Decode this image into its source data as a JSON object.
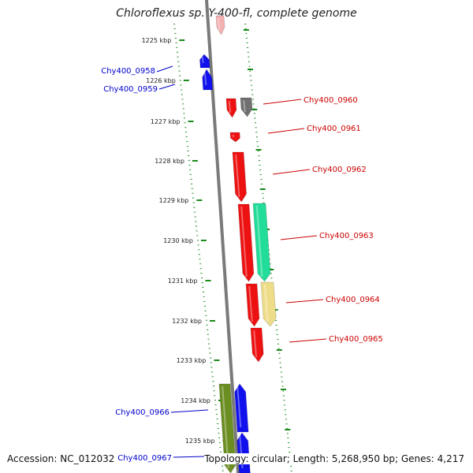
{
  "title": "Chloroflexus sp. Y-400-fl, complete genome",
  "footer": {
    "accession": "Accession: NC_012032",
    "info": "Topology: circular; Length: 5,268,950 bp; Genes: 4,217"
  },
  "colors": {
    "red": "#ee1111",
    "blue": "#1111ee",
    "gray": "#707070",
    "green_teal": "#22dd99",
    "pale_yellow": "#eedd88",
    "olive": "#6b8e23",
    "pink": "#f4b0b0",
    "tick_green": "#1a8a1a",
    "label_red": "#cc0000",
    "label_blue": "#0000cc"
  },
  "ruler_labels": [
    "1225 kbp",
    "1226 kbp",
    "1227 kbp",
    "1228 kbp",
    "1229 kbp",
    "1230 kbp",
    "1231 kbp",
    "1232 kbp",
    "1233 kbp",
    "1234 kbp",
    "1235 kbp"
  ],
  "gene_labels": {
    "left": [
      "Chy400_0958",
      "Chy400_0959",
      "Chy400_0966",
      "Chy400_0967"
    ],
    "right": [
      "Chy400_0960",
      "Chy400_0961",
      "Chy400_0962",
      "Chy400_0963",
      "Chy400_0964",
      "Chy400_0965"
    ]
  }
}
